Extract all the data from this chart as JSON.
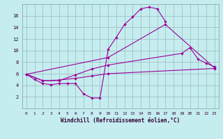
{
  "bg_color": "#c5edf0",
  "line_color": "#990099",
  "grid_color": "#9ab8ba",
  "xlabel": "Windchill (Refroidissement éolien,°C)",
  "xlim": [
    -0.5,
    23.5
  ],
  "ylim": [
    0,
    18
  ],
  "yticks": [
    2,
    4,
    6,
    8,
    10,
    12,
    14,
    16
  ],
  "xticks": [
    0,
    1,
    2,
    3,
    4,
    5,
    6,
    7,
    8,
    9,
    10,
    11,
    12,
    13,
    14,
    15,
    16,
    17,
    18,
    19,
    20,
    21,
    22,
    23
  ],
  "s1x": [
    0,
    1,
    2,
    3,
    4,
    5,
    6,
    7,
    8,
    9,
    10,
    11,
    12,
    13,
    14,
    15,
    16,
    17
  ],
  "s1y": [
    5.9,
    5.0,
    4.3,
    4.1,
    4.3,
    4.3,
    4.3,
    2.5,
    1.8,
    1.8,
    10.2,
    12.3,
    14.5,
    15.8,
    17.2,
    17.5,
    17.2,
    15.0
  ],
  "s2x": [
    0,
    10,
    17,
    23
  ],
  "s2y": [
    5.9,
    8.8,
    14.5,
    7.0
  ],
  "s3x": [
    0,
    2,
    4,
    6,
    8,
    10,
    19,
    20,
    21,
    22,
    23
  ],
  "s3y": [
    5.9,
    4.8,
    4.8,
    5.8,
    6.8,
    7.5,
    9.5,
    10.5,
    8.5,
    7.8,
    7.2
  ],
  "s4x": [
    0,
    2,
    4,
    6,
    8,
    10,
    23
  ],
  "s4y": [
    5.9,
    4.8,
    4.9,
    5.2,
    5.6,
    6.0,
    6.9
  ]
}
